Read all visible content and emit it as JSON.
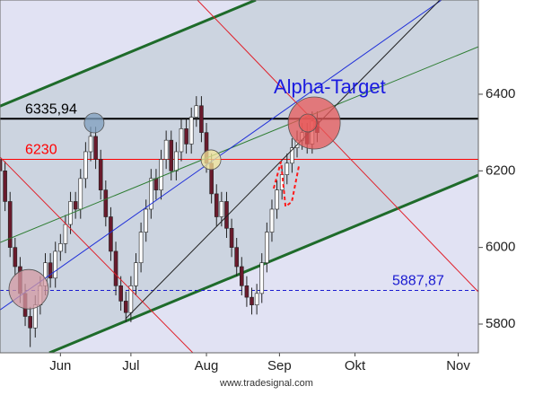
{
  "chart_data": {
    "type": "candlestick",
    "xlim": [
      128,
      318
    ],
    "ylim": [
      5725,
      6646
    ],
    "xticks": [
      {
        "value": 152,
        "label": "Jun"
      },
      {
        "value": 180,
        "label": "Jul"
      },
      {
        "value": 210,
        "label": "Aug"
      },
      {
        "value": 239,
        "label": "Sep"
      },
      {
        "value": 269,
        "label": "Okt"
      },
      {
        "value": 310,
        "label": "Nov"
      }
    ],
    "yticks": [
      5800,
      6000,
      6200,
      6400
    ],
    "up_color": "#ffffff",
    "down_color": "#6a1a2c",
    "candles": [
      [
        128,
        6230,
        6255,
        6175,
        6200
      ],
      [
        130,
        6200,
        6225,
        6095,
        6120
      ],
      [
        132,
        6120,
        6145,
        5975,
        6000
      ],
      [
        134,
        6000,
        6025,
        5925,
        5950
      ],
      [
        136,
        5950,
        5975,
        5855,
        5880
      ],
      [
        138,
        5880,
        5905,
        5795,
        5820
      ],
      [
        140,
        5820,
        5845,
        5740,
        5790
      ],
      [
        142,
        5790,
        5875,
        5765,
        5850
      ],
      [
        144,
        5850,
        5925,
        5825,
        5900
      ],
      [
        146,
        5900,
        5985,
        5875,
        5960
      ],
      [
        148,
        5960,
        5985,
        5895,
        5920
      ],
      [
        150,
        5920,
        6015,
        5895,
        5990
      ],
      [
        152,
        5990,
        6035,
        5965,
        6010
      ],
      [
        154,
        6010,
        6085,
        5985,
        6060
      ],
      [
        156,
        6060,
        6145,
        6035,
        6120
      ],
      [
        158,
        6120,
        6145,
        6075,
        6100
      ],
      [
        160,
        6100,
        6205,
        6075,
        6180
      ],
      [
        162,
        6180,
        6275,
        6155,
        6250
      ],
      [
        164,
        6250,
        6315,
        6225,
        6290
      ],
      [
        166,
        6290,
        6315,
        6205,
        6230
      ],
      [
        168,
        6230,
        6255,
        6125,
        6150
      ],
      [
        170,
        6150,
        6175,
        6055,
        6080
      ],
      [
        172,
        6080,
        6105,
        5965,
        5990
      ],
      [
        174,
        5990,
        6015,
        5875,
        5900
      ],
      [
        176,
        5900,
        5925,
        5835,
        5860
      ],
      [
        178,
        5860,
        5885,
        5805,
        5830
      ],
      [
        180,
        5830,
        5925,
        5805,
        5900
      ],
      [
        182,
        5900,
        5985,
        5875,
        5960
      ],
      [
        184,
        5960,
        6065,
        5935,
        6040
      ],
      [
        186,
        6040,
        6125,
        6015,
        6100
      ],
      [
        188,
        6100,
        6205,
        6075,
        6180
      ],
      [
        190,
        6180,
        6205,
        6125,
        6150
      ],
      [
        192,
        6150,
        6255,
        6125,
        6230
      ],
      [
        194,
        6230,
        6305,
        6205,
        6280
      ],
      [
        196,
        6280,
        6305,
        6175,
        6200
      ],
      [
        198,
        6200,
        6275,
        6175,
        6250
      ],
      [
        200,
        6250,
        6335,
        6225,
        6310
      ],
      [
        202,
        6310,
        6335,
        6245,
        6270
      ],
      [
        204,
        6270,
        6365,
        6245,
        6340
      ],
      [
        206,
        6340,
        6395,
        6315,
        6370
      ],
      [
        208,
        6370,
        6395,
        6275,
        6300
      ],
      [
        210,
        6300,
        6325,
        6195,
        6220
      ],
      [
        212,
        6220,
        6245,
        6115,
        6140
      ],
      [
        214,
        6140,
        6165,
        6055,
        6080
      ],
      [
        216,
        6080,
        6145,
        6055,
        6120
      ],
      [
        218,
        6120,
        6145,
        6025,
        6050
      ],
      [
        220,
        6050,
        6075,
        5975,
        6000
      ],
      [
        222,
        6000,
        6025,
        5925,
        5950
      ],
      [
        224,
        5950,
        5975,
        5875,
        5900
      ],
      [
        226,
        5900,
        5925,
        5845,
        5870
      ],
      [
        228,
        5870,
        5895,
        5825,
        5850
      ],
      [
        230,
        5850,
        5905,
        5825,
        5880
      ],
      [
        232,
        5880,
        5985,
        5855,
        5960
      ],
      [
        234,
        5960,
        6065,
        5935,
        6040
      ],
      [
        236,
        6040,
        6125,
        6015,
        6100
      ],
      [
        238,
        6100,
        6175,
        6075,
        6150
      ],
      [
        240,
        6150,
        6215,
        6125,
        6190
      ],
      [
        242,
        6190,
        6245,
        6165,
        6220
      ],
      [
        244,
        6220,
        6285,
        6195,
        6260
      ],
      [
        246,
        6260,
        6305,
        6235,
        6280
      ],
      [
        248,
        6280,
        6325,
        6255,
        6300
      ],
      [
        250,
        6300,
        6325,
        6245,
        6270
      ],
      [
        252,
        6270,
        6355,
        6245,
        6330
      ],
      [
        254,
        6330,
        6355,
        6275,
        6300
      ]
    ],
    "channel": [
      {
        "x": [
          128,
          229.6
        ],
        "y": [
          6369,
          6646
        ],
        "color": "#1e6b2a"
      },
      {
        "x": [
          147.6,
          318
        ],
        "y": [
          5725,
          6189
        ],
        "color": "#1e6b2a"
      }
    ],
    "lines": [
      {
        "x": [
          128,
          318
        ],
        "y": [
          6013,
          6524
        ],
        "color": "#2e7d32"
      },
      {
        "x": [
          128,
          303.4
        ],
        "y": [
          5837,
          6646
        ],
        "color": "#1f2fd8"
      },
      {
        "x": [
          177.9,
          302.7
        ],
        "y": [
          5814,
          6646
        ],
        "color": "#222222"
      },
      {
        "x": [
          206.4,
          318
        ],
        "y": [
          6646,
          5884
        ],
        "color": "#e0202a"
      },
      {
        "x": [
          128,
          204.6
        ],
        "y": [
          6236,
          5725
        ],
        "color": "#e0202a"
      },
      {
        "x": [
          236.7,
          239.6,
          241.4,
          243.9,
          246.7
        ],
        "y": [
          6154,
          6224,
          6107,
          6119,
          6212
        ],
        "color": "#ff1a1a",
        "dashed": true
      }
    ],
    "levels": [
      {
        "value": 6335.94,
        "label": "6335,94",
        "color": "#000000"
      },
      {
        "value": 6230,
        "label": "6230",
        "color": "#ff0000"
      },
      {
        "value": 5887.87,
        "label": "5887,87",
        "color": "#1a1ad0",
        "dashed": true
      }
    ],
    "circles": [
      {
        "x": 165.4,
        "y": 6325,
        "color": "#7f9fbf"
      },
      {
        "x": 211.8,
        "y": 6229,
        "color": "#f4e79a"
      },
      {
        "x": 139.4,
        "y": 5891,
        "color": "#d49aa3"
      },
      {
        "x": 252.8,
        "y": 6325,
        "color": "#e85a5a"
      },
      {
        "x": 250.3,
        "y": 6325,
        "color": "#e85a5a"
      }
    ],
    "annotation": "Alpha-Target",
    "source": "www.tradesignal.com"
  }
}
